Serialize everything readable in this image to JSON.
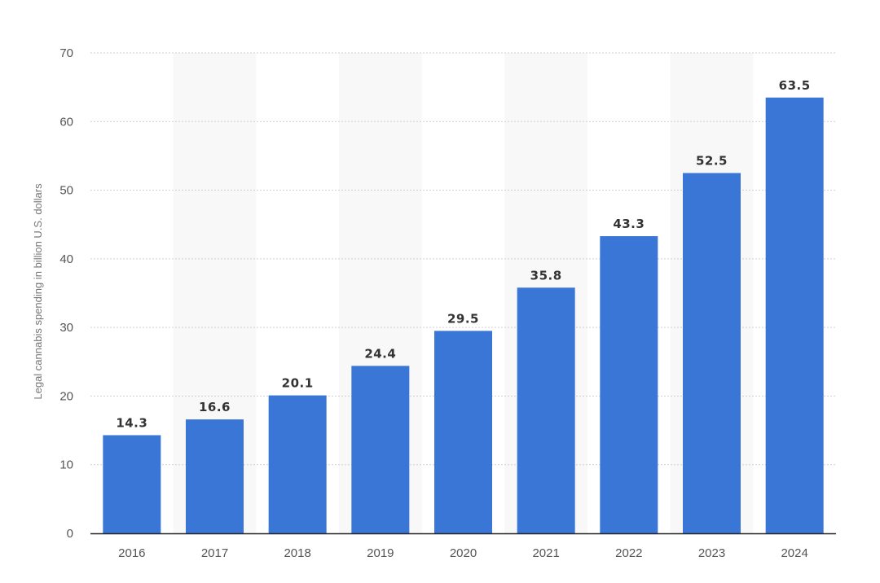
{
  "chart_data": {
    "type": "bar",
    "title": "",
    "xlabel": "",
    "ylabel": "Legal cannabis spending in billion U.S. dollars",
    "categories": [
      "2016",
      "2017",
      "2018",
      "2019",
      "2020",
      "2021",
      "2022",
      "2023",
      "2024"
    ],
    "values": [
      14.3,
      16.6,
      20.1,
      24.4,
      29.5,
      35.8,
      43.3,
      52.5,
      63.5
    ],
    "value_labels": [
      "14.3",
      "16.6",
      "20.1",
      "24.4",
      "29.5",
      "35.8",
      "43.3",
      "52.5",
      "63.5"
    ],
    "ylim": [
      0,
      70
    ],
    "yticks": [
      "0",
      "10",
      "20",
      "30",
      "40",
      "50",
      "60",
      "70"
    ],
    "grid": true,
    "alternating_column_bands": true,
    "legend": "none",
    "colors": {
      "bar": "#3a76d6",
      "band": "#f8f8f8",
      "grid": "#cfcfcf",
      "axis": "#222222"
    }
  }
}
